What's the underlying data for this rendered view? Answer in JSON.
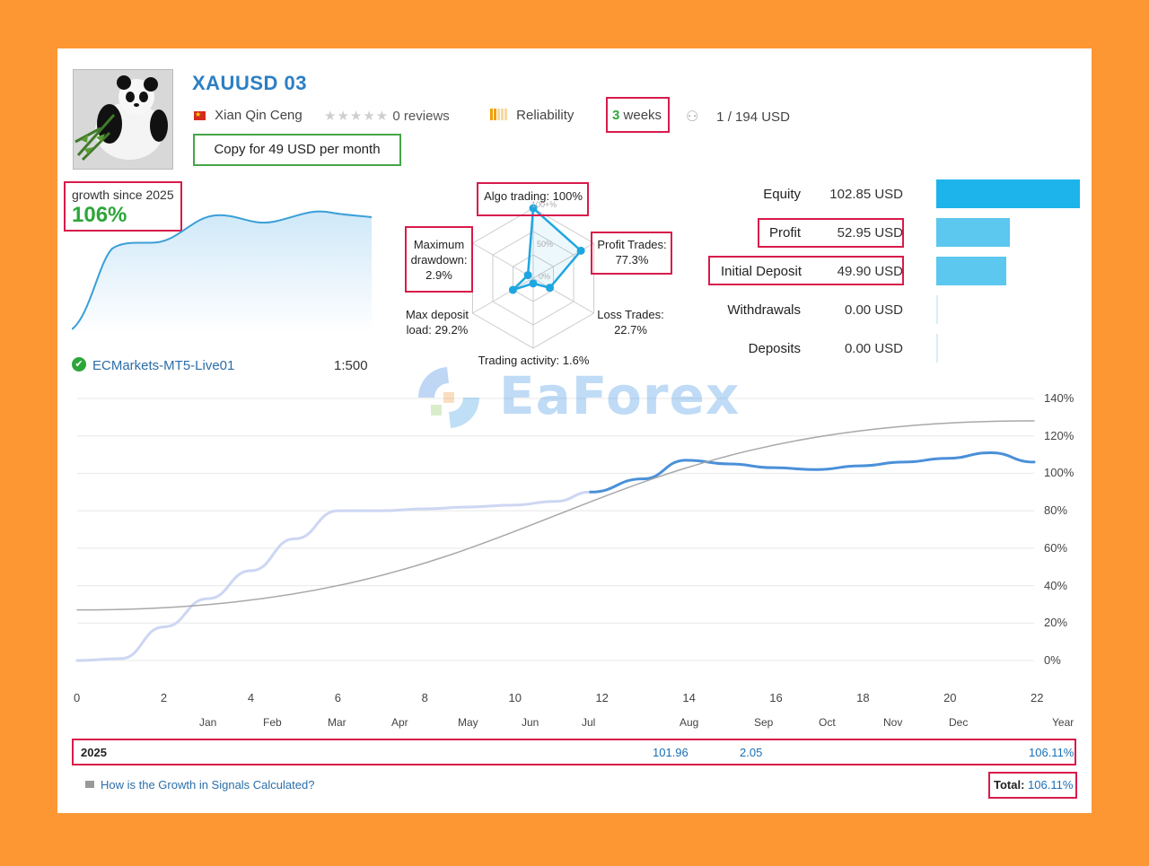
{
  "header": {
    "title": "XAUUSD 03",
    "author": "Xian Qin Ceng",
    "reviews": "0 reviews",
    "reliability": "Reliability",
    "weeks_num": "3",
    "weeks_word": "weeks",
    "subscribers": "1",
    "subscribers_sep": "/",
    "funds": "194 USD",
    "copy_button": "Copy for 49 USD per month"
  },
  "growth": {
    "label": "growth since 2025",
    "value": "106%"
  },
  "account": {
    "server": "ECMarkets-MT5-Live01",
    "leverage": "1:500"
  },
  "radar": {
    "algo": "Algo trading: 100%",
    "profit_trades": [
      "Profit Trades:",
      "77.3%"
    ],
    "loss_trades": [
      "Loss Trades:",
      "22.7%"
    ],
    "activity": "Trading activity: 1.6%",
    "max_load": [
      "Max deposit",
      "load: 29.2%"
    ],
    "drawdown": [
      "Maximum",
      "drawdown:",
      "2.9%"
    ],
    "ring_labels": [
      "100+%",
      "50%",
      "0%"
    ],
    "values": {
      "algo": 1.0,
      "profit_trades": 0.773,
      "loss_trades": 0.227,
      "activity": 0.016,
      "max_load": 0.292,
      "drawdown": 0.029
    }
  },
  "finance": {
    "rows": [
      {
        "label": "Equity",
        "value": "102.85 USD",
        "amount": 102.85,
        "color": "#1cb4ea"
      },
      {
        "label": "Profit",
        "value": "52.95 USD",
        "amount": 52.95,
        "color": "#5cc7ef"
      },
      {
        "label": "Initial Deposit",
        "value": "49.90 USD",
        "amount": 49.9,
        "color": "#5cc7ef"
      },
      {
        "label": "Withdrawals",
        "value": "0.00 USD",
        "amount": 0,
        "color": "#d6eef8"
      },
      {
        "label": "Deposits",
        "value": "0.00 USD",
        "amount": 0,
        "color": "#d6eef8"
      }
    ]
  },
  "chart_data": {
    "type": "line",
    "x_ticks": [
      "0",
      "2",
      "4",
      "6",
      "8",
      "10",
      "12",
      "14",
      "16",
      "18",
      "20",
      "22"
    ],
    "months": [
      "Jan",
      "Feb",
      "Mar",
      "Apr",
      "May",
      "Jun",
      "Jul",
      "Aug",
      "Sep",
      "Oct",
      "Nov",
      "Dec",
      "Year"
    ],
    "y_ticks": [
      "140%",
      "120%",
      "100%",
      "80%",
      "60%",
      "40%",
      "20%",
      "0%"
    ],
    "ylim": [
      0,
      140
    ],
    "xlim": [
      0,
      22
    ],
    "series": [
      {
        "x": [
          0,
          1,
          2,
          3,
          4,
          5,
          6,
          7,
          8,
          9,
          10,
          11,
          11.8
        ],
        "y": [
          0,
          1,
          18,
          33,
          48,
          65,
          80,
          80,
          81,
          82,
          83,
          85,
          90
        ]
      },
      {
        "x": [
          11.8,
          13,
          14,
          15,
          16,
          17,
          18,
          19,
          20,
          21,
          22
        ],
        "y": [
          90,
          97,
          107,
          105,
          103,
          102,
          104,
          106,
          108,
          111,
          106
        ]
      },
      {
        "x": [
          0,
          22
        ],
        "y": [
          27,
          128
        ]
      }
    ],
    "table": {
      "year": "2025",
      "aug": "101.96",
      "sep": "2.05",
      "total_year": "106.11%"
    }
  },
  "footer": {
    "how_link": "How is the Growth in Signals Calculated?",
    "total_label": "Total:",
    "total_value": "106.11%"
  },
  "watermark": "EaForex"
}
